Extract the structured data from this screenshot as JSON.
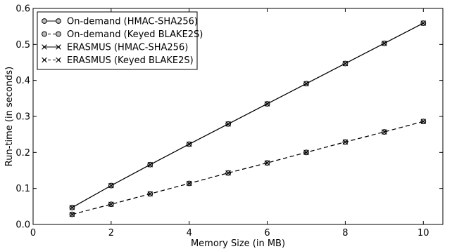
{
  "chart_data": {
    "type": "line",
    "xlabel": "Memory Size (in MB)",
    "ylabel": "Run-time (in seconds)",
    "xlim": [
      0,
      10.5
    ],
    "ylim": [
      0,
      0.6
    ],
    "xticks": [
      0,
      2,
      4,
      6,
      8,
      10
    ],
    "yticks": [
      0.0,
      0.1,
      0.2,
      0.3,
      0.4,
      0.5,
      0.6
    ],
    "ytick_labels": [
      "0.0",
      "0.1",
      "0.2",
      "0.3",
      "0.4",
      "0.5",
      "0.6"
    ],
    "grid": false,
    "legend_position": "top-left",
    "x": [
      1,
      2,
      3,
      4,
      5,
      6,
      7,
      8,
      9,
      10
    ],
    "series": [
      {
        "name": "On-demand (HMAC-SHA256)",
        "marker": "circle",
        "linestyle": "solid",
        "values": [
          0.047,
          0.108,
          0.166,
          0.223,
          0.279,
          0.335,
          0.391,
          0.447,
          0.503,
          0.559
        ]
      },
      {
        "name": "On-demand (Keyed BLAKE2S)",
        "marker": "circle",
        "linestyle": "dashed",
        "values": [
          0.028,
          0.056,
          0.085,
          0.114,
          0.143,
          0.171,
          0.2,
          0.229,
          0.257,
          0.286
        ]
      },
      {
        "name": "ERASMUS (HMAC-SHA256)",
        "marker": "x",
        "linestyle": "solid",
        "values": [
          0.047,
          0.108,
          0.166,
          0.223,
          0.279,
          0.335,
          0.391,
          0.447,
          0.503,
          0.559
        ]
      },
      {
        "name": "ERASMUS (Keyed BLAKE2S)",
        "marker": "x",
        "linestyle": "dashed",
        "values": [
          0.028,
          0.056,
          0.085,
          0.114,
          0.143,
          0.171,
          0.2,
          0.229,
          0.257,
          0.286
        ]
      }
    ]
  }
}
